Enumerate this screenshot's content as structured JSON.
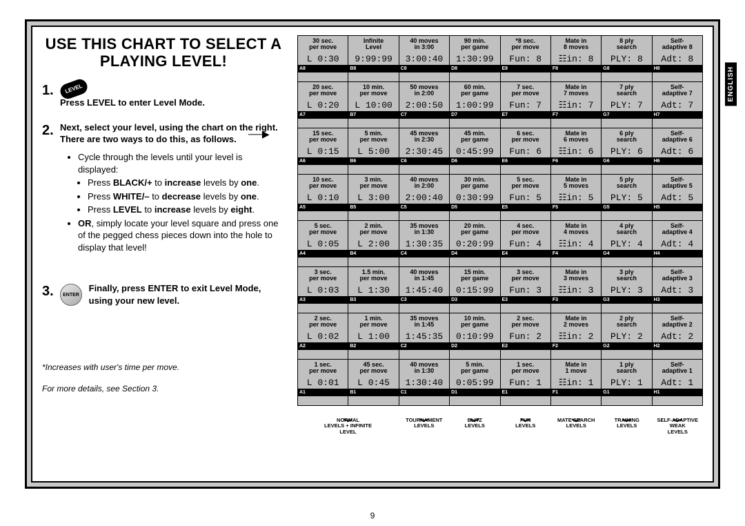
{
  "title": "USE THIS CHART TO SELECT A PLAYING LEVEL!",
  "sideTab": "ENGLISH",
  "pageNumber": "9",
  "steps": {
    "s1": {
      "num": "1.",
      "badge": "LEVEL",
      "text": "Press LEVEL to enter Level Mode."
    },
    "s2": {
      "num": "2.",
      "lead": "Next, select your level, using the chart on the right. There are two ways to do this, as follows.",
      "bullets": {
        "cycle": "Cycle through the levels until your level is displayed:",
        "black": "Press BLACK/+ to increase levels by one.",
        "white": "Press WHITE/– to decrease levels by one.",
        "levelInc": "Press LEVEL to increase levels by eight.",
        "or": "OR, simply locate your level square and press one of the pegged chess pieces down into the hole to display that level!"
      }
    },
    "s3": {
      "num": "3.",
      "badge": "ENTER",
      "text": "Finally, press ENTER to exit Level Mode, using your new level."
    }
  },
  "footnotes": {
    "f1": "*Increases with user's time per move.",
    "f2": "For more details, see Section 3."
  },
  "columnGroups": [
    {
      "label": "NORMAL LEVELS + INFINITE LEVEL",
      "span": 2
    },
    {
      "label": "TOURNAMENT LEVELS",
      "span": 1
    },
    {
      "label": "BLITZ LEVELS",
      "span": 1
    },
    {
      "label": "FUN LEVELS",
      "span": 1
    },
    {
      "label": "MATE SEARCH LEVELS",
      "span": 1
    },
    {
      "label": "TRAINING LEVELS",
      "span": 1
    },
    {
      "label": "SELF-ADAPTIVE WEAK LEVELS",
      "span": 1
    }
  ],
  "grid": [
    [
      {
        "h": "30 sec.\nper move",
        "d": "L 0:30",
        "r": "A8"
      },
      {
        "h": "Infinite\nLevel",
        "d": "9:99:99",
        "r": "B8"
      },
      {
        "h": "40 moves\nin 3:00",
        "d": "3:00:40",
        "r": "C8"
      },
      {
        "h": "90 min.\nper game",
        "d": "1:30:99",
        "r": "D8"
      },
      {
        "h": "*8 sec.\nper move",
        "d": "Fun: 8",
        "r": "E8"
      },
      {
        "h": "Mate in\n8 moves",
        "d": "☷in: 8",
        "r": "F8"
      },
      {
        "h": "8 ply\nsearch",
        "d": "PLY: 8",
        "r": "G8"
      },
      {
        "h": "Self-\nadaptive 8",
        "d": "Adt: 8",
        "r": "H8"
      }
    ],
    [
      {
        "h": "20 sec.\nper move",
        "d": "L 0:20",
        "r": "A7"
      },
      {
        "h": "10 min.\nper move",
        "d": "L 10:00",
        "r": "B7"
      },
      {
        "h": "50 moves\nin 2:00",
        "d": "2:00:50",
        "r": "C7"
      },
      {
        "h": "60 min.\nper game",
        "d": "1:00:99",
        "r": "D7"
      },
      {
        "h": "7 sec.\nper move",
        "d": "Fun: 7",
        "r": "E7"
      },
      {
        "h": "Mate in\n7 moves",
        "d": "☷in: 7",
        "r": "F7"
      },
      {
        "h": "7 ply\nsearch",
        "d": "PLY: 7",
        "r": "G7"
      },
      {
        "h": "Self-\nadaptive 7",
        "d": "Adt: 7",
        "r": "H7"
      }
    ],
    [
      {
        "h": "15 sec.\nper move",
        "d": "L 0:15",
        "r": "A6"
      },
      {
        "h": "5 min.\nper move",
        "d": "L 5:00",
        "r": "B6"
      },
      {
        "h": "45 moves\nin 2:30",
        "d": "2:30:45",
        "r": "C6"
      },
      {
        "h": "45 min.\nper game",
        "d": "0:45:99",
        "r": "D6"
      },
      {
        "h": "6 sec.\nper move",
        "d": "Fun: 6",
        "r": "E6"
      },
      {
        "h": "Mate in\n6 moves",
        "d": "☷in: 6",
        "r": "F6"
      },
      {
        "h": "6 ply\nsearch",
        "d": "PLY: 6",
        "r": "G6"
      },
      {
        "h": "Self-\nadaptive 6",
        "d": "Adt: 6",
        "r": "H6"
      }
    ],
    [
      {
        "h": "10 sec.\nper move",
        "d": "L 0:10",
        "r": "A5"
      },
      {
        "h": "3 min.\nper move",
        "d": "L 3:00",
        "r": "B5"
      },
      {
        "h": "40 moves\nin 2:00",
        "d": "2:00:40",
        "r": "C5"
      },
      {
        "h": "30 min.\nper game",
        "d": "0:30:99",
        "r": "D5"
      },
      {
        "h": "5 sec.\nper move",
        "d": "Fun: 5",
        "r": "E5"
      },
      {
        "h": "Mate in\n5 moves",
        "d": "☷in: 5",
        "r": "F5"
      },
      {
        "h": "5 ply\nsearch",
        "d": "PLY: 5",
        "r": "G5"
      },
      {
        "h": "Self-\nadaptive 5",
        "d": "Adt: 5",
        "r": "H5"
      }
    ],
    [
      {
        "h": "5 sec.\nper move",
        "d": "L 0:05",
        "r": "A4"
      },
      {
        "h": "2 min.\nper move",
        "d": "L 2:00",
        "r": "B4"
      },
      {
        "h": "35 moves\nin 1:30",
        "d": "1:30:35",
        "r": "C4"
      },
      {
        "h": "20 min.\nper game",
        "d": "0:20:99",
        "r": "D4"
      },
      {
        "h": "4 sec.\nper move",
        "d": "Fun: 4",
        "r": "E4"
      },
      {
        "h": "Mate in\n4 moves",
        "d": "☷in: 4",
        "r": "F4"
      },
      {
        "h": "4 ply\nsearch",
        "d": "PLY: 4",
        "r": "G4"
      },
      {
        "h": "Self-\nadaptive 4",
        "d": "Adt: 4",
        "r": "H4"
      }
    ],
    [
      {
        "h": "3 sec.\nper move",
        "d": "L 0:03",
        "r": "A3"
      },
      {
        "h": "1.5 min.\nper move",
        "d": "L 1:30",
        "r": "B3"
      },
      {
        "h": "40 moves\nin 1:45",
        "d": "1:45:40",
        "r": "C3"
      },
      {
        "h": "15 min.\nper game",
        "d": "0:15:99",
        "r": "D3"
      },
      {
        "h": "3 sec.\nper move",
        "d": "Fun: 3",
        "r": "E3"
      },
      {
        "h": "Mate in\n3 moves",
        "d": "☷in: 3",
        "r": "F3"
      },
      {
        "h": "3 ply\nsearch",
        "d": "PLY: 3",
        "r": "G3"
      },
      {
        "h": "Self-\nadaptive 3",
        "d": "Adt: 3",
        "r": "H3"
      }
    ],
    [
      {
        "h": "2 sec.\nper move",
        "d": "L 0:02",
        "r": "A2"
      },
      {
        "h": "1 min.\nper move",
        "d": "L 1:00",
        "r": "B2"
      },
      {
        "h": "35 moves\nin 1:45",
        "d": "1:45:35",
        "r": "C2"
      },
      {
        "h": "10 min.\nper game",
        "d": "0:10:99",
        "r": "D2"
      },
      {
        "h": "2 sec.\nper move",
        "d": "Fun: 2",
        "r": "E2"
      },
      {
        "h": "Mate in\n2 moves",
        "d": "☷in: 2",
        "r": "F2"
      },
      {
        "h": "2 ply\nsearch",
        "d": "PLY: 2",
        "r": "G2"
      },
      {
        "h": "Self-\nadaptive 2",
        "d": "Adt: 2",
        "r": "H2"
      }
    ],
    [
      {
        "h": "1 sec.\nper move",
        "d": "L 0:01",
        "r": "A1"
      },
      {
        "h": "45 sec.\nper move",
        "d": "L 0:45",
        "r": "B1"
      },
      {
        "h": "40 moves\nin 1:30",
        "d": "1:30:40",
        "r": "C1"
      },
      {
        "h": "5 min.\nper game",
        "d": "0:05:99",
        "r": "D1"
      },
      {
        "h": "1 sec.\nper move",
        "d": "Fun: 1",
        "r": "E1"
      },
      {
        "h": "Mate in\n1 move",
        "d": "☷in: 1",
        "r": "F1"
      },
      {
        "h": "1 ply\nsearch",
        "d": "PLY: 1",
        "r": "G1"
      },
      {
        "h": "Self-\nadaptive 1",
        "d": "Adt: 1",
        "r": "H1"
      }
    ]
  ]
}
